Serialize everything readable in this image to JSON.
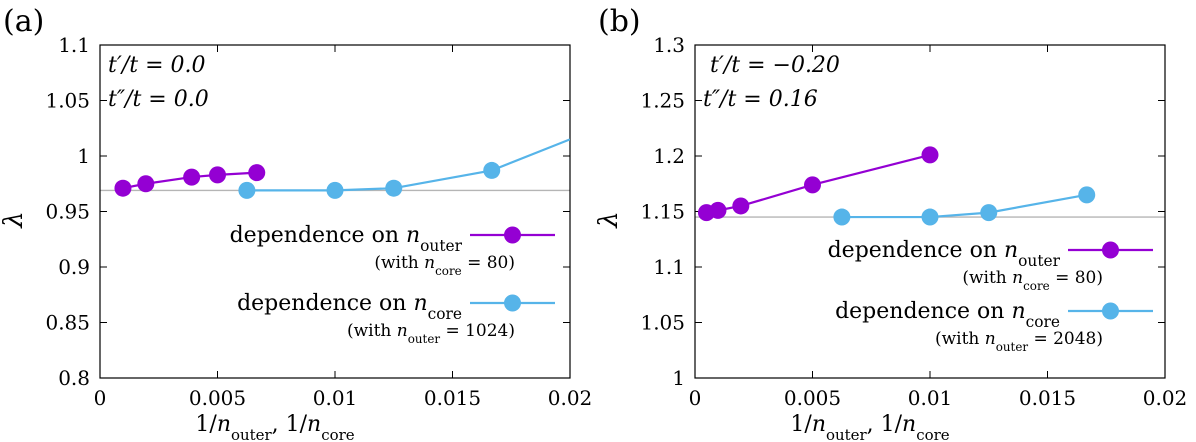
{
  "chart_data": [
    {
      "type": "line",
      "panel_label": "(a)",
      "params": [
        "t′/t = 0.0",
        "t″/t = 0.0"
      ],
      "ylabel": "λ",
      "xlabel": "1/n_outer, 1/n_core",
      "xlim": [
        0,
        0.02
      ],
      "ylim": [
        0.8,
        1.1
      ],
      "xticks": [
        0,
        0.005,
        0.01,
        0.015,
        0.02
      ],
      "xtick_labels": [
        "0",
        "0.005",
        "0.01",
        "0.015",
        "0.02"
      ],
      "yticks": [
        0.8,
        0.85,
        0.9,
        0.95,
        1.0,
        1.05,
        1.1
      ],
      "ytick_labels": [
        "0.8",
        "0.85",
        "0.9",
        "0.95",
        "1",
        "1.05",
        "1.1"
      ],
      "reference_line": 0.969,
      "series": [
        {
          "name": "dependence on n_outer",
          "sub": "(with n_core = 80)",
          "color": "#9400d3",
          "x": [
            0.000977,
            0.00195,
            0.0039,
            0.005,
            0.00667
          ],
          "y": [
            0.971,
            0.975,
            0.981,
            0.983,
            0.985
          ]
        },
        {
          "name": "dependence on n_core",
          "sub": "(with n_outer = 1024)",
          "color": "#56b4e9",
          "x": [
            0.00625,
            0.01,
            0.0125,
            0.01667,
            0.02
          ],
          "y": [
            0.969,
            0.969,
            0.971,
            0.987,
            1.015
          ],
          "markers_n": 4
        }
      ]
    },
    {
      "type": "line",
      "panel_label": "(b)",
      "params": [
        "t′/t = −0.20",
        "t″/t = 0.16"
      ],
      "ylabel": "λ",
      "xlabel": "1/n_outer, 1/n_core",
      "xlim": [
        0,
        0.02
      ],
      "ylim": [
        1.0,
        1.3
      ],
      "xticks": [
        0,
        0.005,
        0.01,
        0.015,
        0.02
      ],
      "xtick_labels": [
        "0",
        "0.005",
        "0.01",
        "0.015",
        "0.02"
      ],
      "yticks": [
        1.0,
        1.05,
        1.1,
        1.15,
        1.2,
        1.25,
        1.3
      ],
      "ytick_labels": [
        "1",
        "1.05",
        "1.1",
        "1.15",
        "1.2",
        "1.25",
        "1.3"
      ],
      "reference_line": 1.145,
      "series": [
        {
          "name": "dependence on n_outer",
          "sub": "(with n_core = 80)",
          "color": "#9400d3",
          "x": [
            0.000488,
            0.000977,
            0.00195,
            0.005,
            0.01
          ],
          "y": [
            1.149,
            1.151,
            1.155,
            1.174,
            1.201
          ]
        },
        {
          "name": "dependence on n_core",
          "sub": "(with n_outer = 2048)",
          "color": "#56b4e9",
          "x": [
            0.00625,
            0.01,
            0.0125,
            0.01667
          ],
          "y": [
            1.145,
            1.145,
            1.149,
            1.165
          ]
        }
      ]
    }
  ]
}
